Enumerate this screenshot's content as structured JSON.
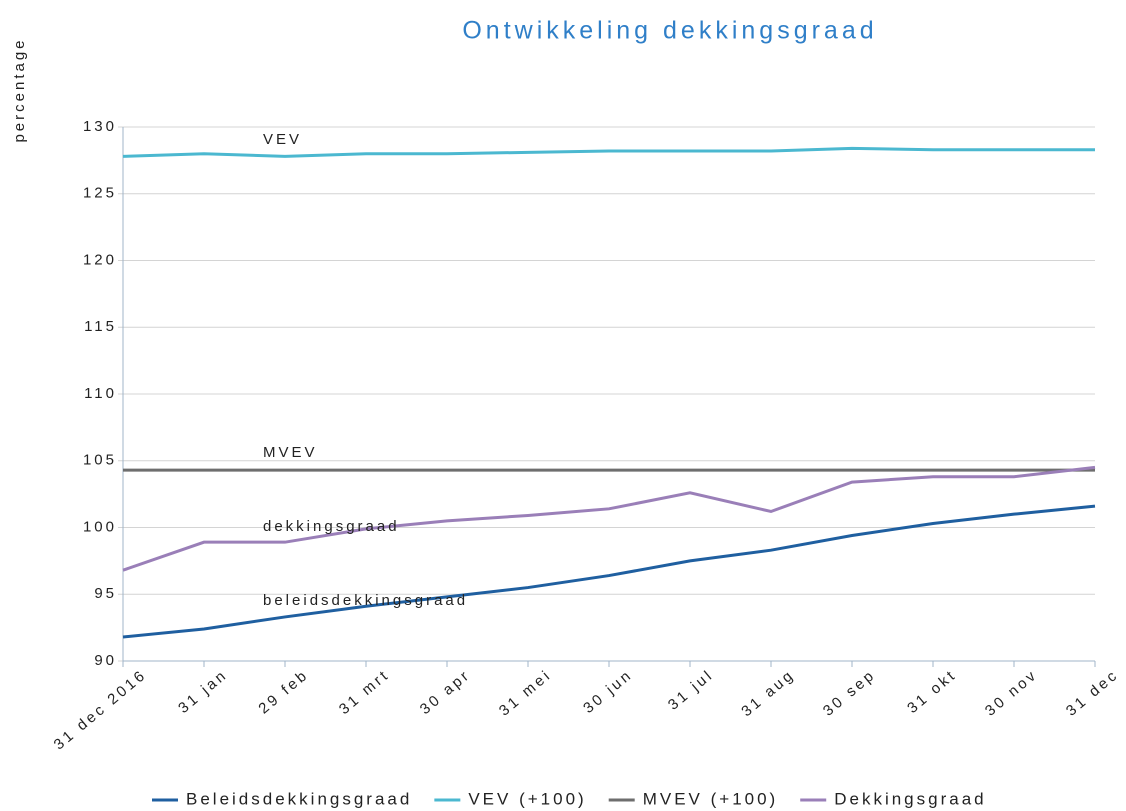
{
  "chart_data": {
    "type": "line",
    "title": "Ontwikkeling dekkingsgraad",
    "y_label": "percentage",
    "categories": [
      "31 dec 2016",
      "31 jan",
      "29 feb",
      "31 mrt",
      "30 apr",
      "31 mei",
      "30 jun",
      "31 jul",
      "31 aug",
      "30 sep",
      "31 okt",
      "30 nov",
      "31 dec"
    ],
    "series": [
      {
        "name": "Beleidsdekkingsgraad",
        "color": "#1f5fa0",
        "values": [
          91.8,
          92.4,
          93.3,
          94.1,
          94.8,
          95.5,
          96.4,
          97.5,
          98.3,
          99.4,
          100.3,
          101.0,
          101.6
        ]
      },
      {
        "name": "VEV (+100)",
        "color": "#4bb8d0",
        "values": [
          127.8,
          128.0,
          127.8,
          128.0,
          128.0,
          128.1,
          128.2,
          128.2,
          128.2,
          128.4,
          128.3,
          128.3,
          128.3
        ]
      },
      {
        "name": "MVEV (+100)",
        "color": "#6e6e6e",
        "values": [
          104.3,
          104.3,
          104.3,
          104.3,
          104.3,
          104.3,
          104.3,
          104.3,
          104.3,
          104.3,
          104.3,
          104.3,
          104.3
        ]
      },
      {
        "name": "Dekkingsgraad",
        "color": "#9a7fb8",
        "values": [
          96.8,
          98.9,
          98.9,
          99.9,
          100.5,
          100.9,
          101.4,
          102.6,
          101.2,
          103.4,
          103.8,
          103.8,
          104.5
        ]
      }
    ],
    "annotations": [
      "VEV",
      "MVEV",
      "dekkingsgraad",
      "beleidsdekkingsgraad"
    ],
    "ylim": [
      90,
      130
    ],
    "yticks": [
      90,
      95,
      100,
      105,
      110,
      115,
      120,
      125,
      130
    ],
    "grid": true,
    "legend": "bottom"
  }
}
